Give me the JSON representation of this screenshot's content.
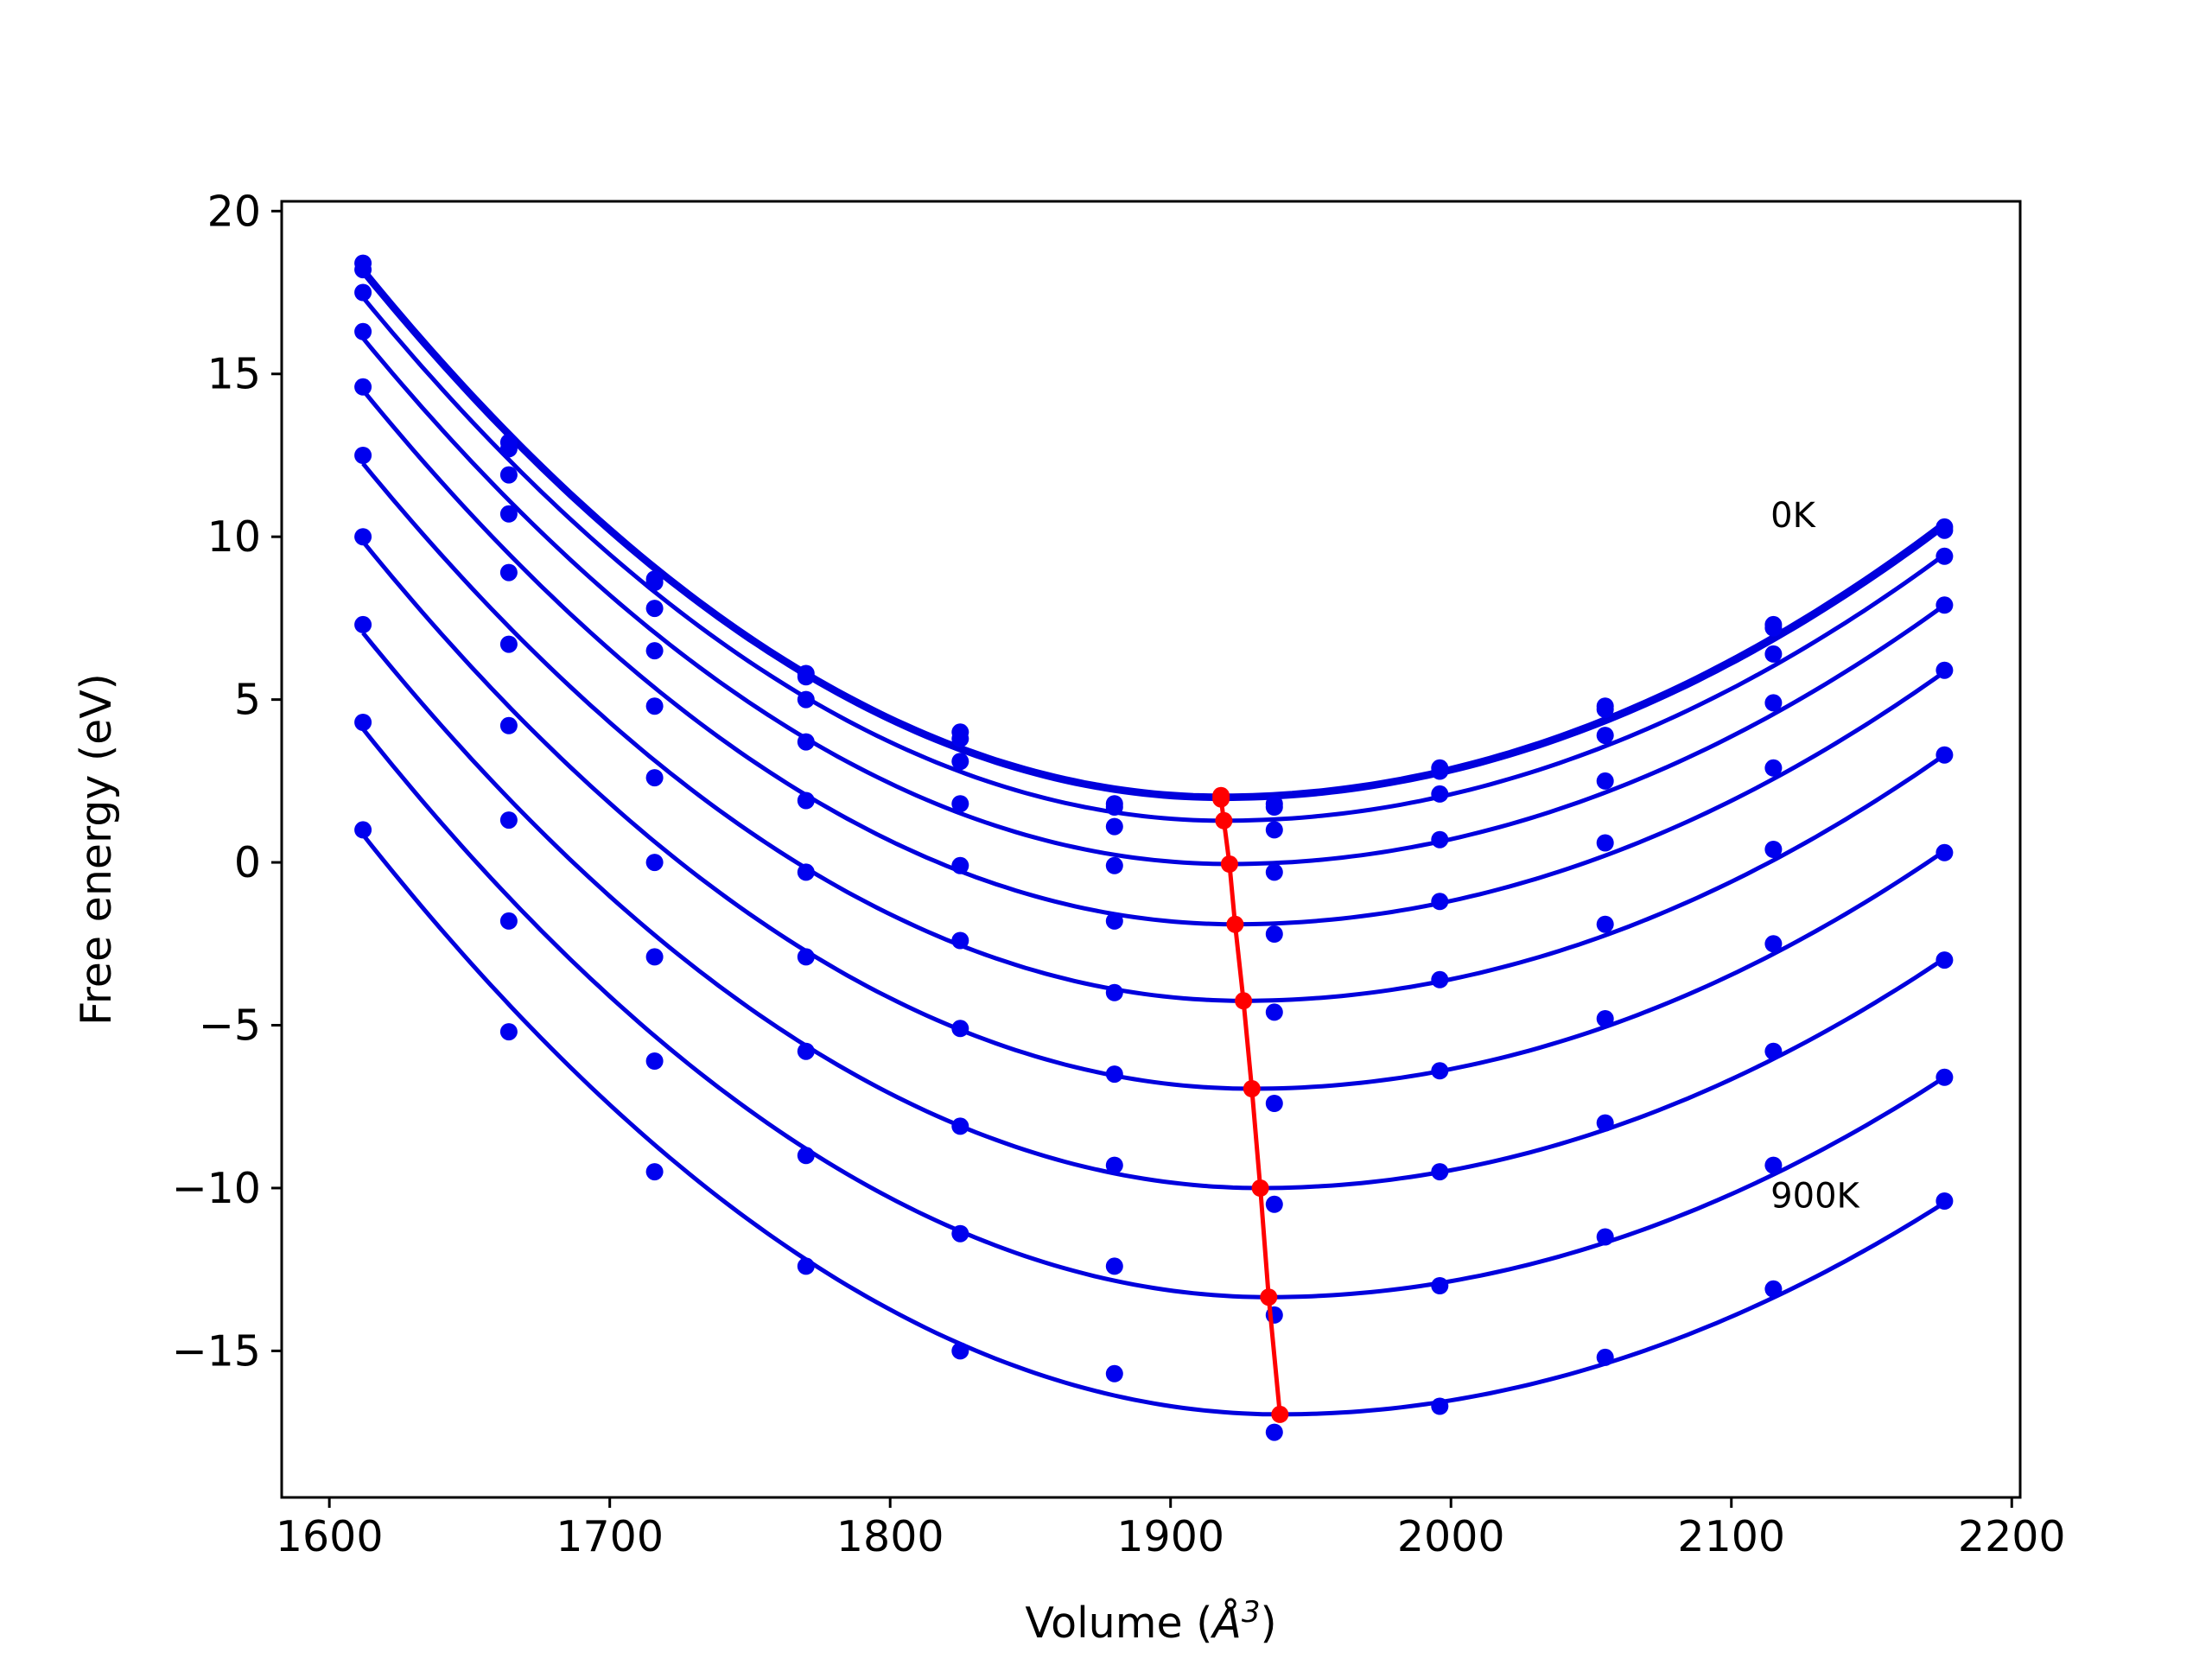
{
  "chart_data": {
    "type": "line",
    "xlabel_text": "Volume (",
    "xlabel_symbol": "Å",
    "xlabel_exp": "3",
    "xlabel_close": ")",
    "ylabel": "Free energy (eV)",
    "xlim": [
      1583,
      2203
    ],
    "ylim": [
      -19.5,
      20.3
    ],
    "x_ticks": [
      1600,
      1700,
      1800,
      1900,
      2000,
      2100,
      2200
    ],
    "y_ticks": [
      -15,
      -10,
      -5,
      0,
      5,
      10,
      15,
      20
    ],
    "x_tick_labels": [
      "1600",
      "1700",
      "1800",
      "1900",
      "2000",
      "2100",
      "2200"
    ],
    "y_tick_labels": [
      "−15",
      "−10",
      "−5",
      "0",
      "5",
      "10",
      "15",
      "20"
    ],
    "grid": false,
    "colors": {
      "points": "#0000ee",
      "fit": "#0000dd",
      "minima": "#ff0000",
      "axes": "#000000"
    },
    "annotations": [
      {
        "text": "0K",
        "x": 2114,
        "y": 10.3
      },
      {
        "text": "900K",
        "x": 2114,
        "y": -10.6
      }
    ],
    "volumes": [
      1612,
      1664,
      1716,
      1770,
      1825,
      1880,
      1937,
      1996,
      2055,
      2115,
      2176
    ],
    "series": [
      {
        "values": [
          18.4,
          12.9,
          8.7,
          5.8,
          4.0,
          1.8,
          1.8,
          2.9,
          4.8,
          7.3,
          10.3
        ],
        "fit_min_x": 1918,
        "fit_min_y": 2.05,
        "fit_left": 18.25,
        "fit_right": 10.45
      },
      {
        "values": [
          18.2,
          12.7,
          8.6,
          5.7,
          3.8,
          1.7,
          1.7,
          2.8,
          4.7,
          7.2,
          10.2
        ],
        "fit_min_x": 1918,
        "fit_min_y": 1.95,
        "fit_left": 18.1,
        "fit_right": 10.3
      },
      {
        "values": [
          17.5,
          11.9,
          7.8,
          5.0,
          3.1,
          1.1,
          1.0,
          2.1,
          3.9,
          6.4,
          9.4
        ],
        "fit_min_x": 1919,
        "fit_min_y": 1.28,
        "fit_left": 17.35,
        "fit_right": 9.45
      },
      {
        "values": [
          16.3,
          10.7,
          6.5,
          3.7,
          1.8,
          -0.1,
          -0.3,
          0.7,
          2.5,
          4.9,
          7.9
        ],
        "fit_min_x": 1921,
        "fit_min_y": -0.05,
        "fit_left": 16.1,
        "fit_right": 7.9
      },
      {
        "values": [
          14.6,
          8.9,
          4.8,
          1.9,
          -0.1,
          -1.8,
          -2.2,
          -1.2,
          0.6,
          2.9,
          5.9
        ],
        "fit_min_x": 1923,
        "fit_min_y": -1.9,
        "fit_left": 14.5,
        "fit_right": 5.85
      },
      {
        "values": [
          12.5,
          6.7,
          2.6,
          -0.3,
          -2.4,
          -4.0,
          -4.6,
          -3.6,
          -1.9,
          0.4,
          3.3
        ],
        "fit_min_x": 1926,
        "fit_min_y": -4.25,
        "fit_left": 12.25,
        "fit_right": 3.3
      },
      {
        "values": [
          10.0,
          4.2,
          0.0,
          -2.9,
          -5.1,
          -6.5,
          -7.4,
          -6.4,
          -4.8,
          -2.5,
          0.3
        ],
        "fit_min_x": 1929,
        "fit_min_y": -6.95,
        "fit_left": 9.85,
        "fit_right": 0.35
      },
      {
        "values": [
          7.3,
          1.3,
          -2.9,
          -5.8,
          -8.1,
          -9.3,
          -10.5,
          -9.5,
          -8.0,
          -5.8,
          -3.0
        ],
        "fit_min_x": 1932,
        "fit_min_y": -10.0,
        "fit_left": 7.05,
        "fit_right": -2.95
      },
      {
        "values": [
          4.3,
          -1.8,
          -6.1,
          -9.0,
          -11.4,
          -12.4,
          -13.9,
          -13.0,
          -11.5,
          -9.3,
          -6.6
        ],
        "fit_min_x": 1935,
        "fit_min_y": -13.35,
        "fit_left": 4.1,
        "fit_right": -6.6
      },
      {
        "values": [
          1.0,
          -5.2,
          -9.5,
          -12.4,
          -15.0,
          -15.7,
          -17.5,
          -16.7,
          -15.2,
          -13.1,
          -10.4
        ],
        "fit_min_x": 1939,
        "fit_min_y": -16.95,
        "fit_left": 0.85,
        "fit_right": -10.45
      }
    ]
  }
}
